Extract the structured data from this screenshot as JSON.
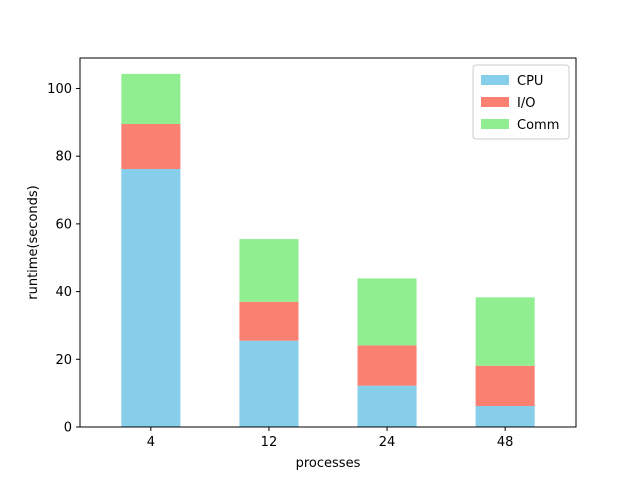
{
  "chart_data": {
    "type": "bar",
    "stacked": true,
    "categories": [
      "4",
      "12",
      "24",
      "48"
    ],
    "series": [
      {
        "name": "CPU",
        "color": "#87ceeb",
        "values": [
          76.2,
          25.5,
          12.2,
          6.2
        ]
      },
      {
        "name": "I/O",
        "color": "#fa8072",
        "values": [
          13.3,
          11.5,
          11.9,
          11.9
        ]
      },
      {
        "name": "Comm",
        "color": "#90ee90",
        "values": [
          14.8,
          18.5,
          19.8,
          20.2
        ]
      }
    ],
    "title": "",
    "xlabel": "processes",
    "ylabel": "runtime(seconds)",
    "ylim": [
      0,
      109
    ],
    "yticks": [
      0,
      20,
      40,
      60,
      80,
      100
    ],
    "grid": false,
    "legend": "top-right"
  }
}
